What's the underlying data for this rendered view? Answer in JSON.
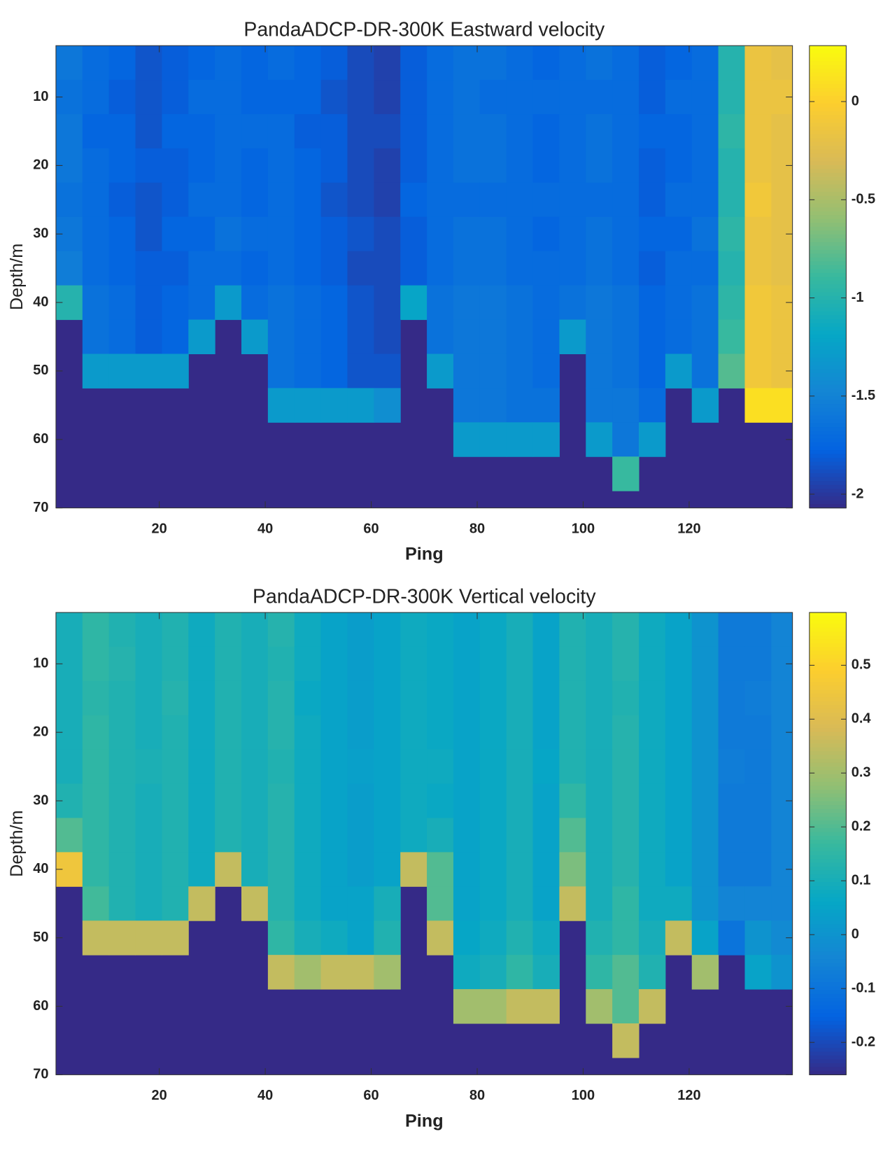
{
  "chart_data": [
    {
      "type": "heatmap",
      "title": "PandaADCP-DR-300K Eastward velocity",
      "x_label": "Ping",
      "y_label": "Depth/m",
      "x": [
        3,
        8,
        13,
        18,
        23,
        28,
        33,
        38,
        43,
        48,
        53,
        58,
        63,
        68,
        73,
        78,
        83,
        88,
        93,
        98,
        103,
        108,
        113,
        118,
        123,
        128,
        133,
        138
      ],
      "y": [
        5,
        10,
        15,
        20,
        25,
        30,
        35,
        40,
        45,
        50,
        55,
        60,
        65,
        70
      ],
      "xlim": [
        0.5,
        139.5
      ],
      "xticks": [
        20,
        40,
        60,
        80,
        100,
        120
      ],
      "ylim": [
        2.5,
        70
      ],
      "yticks": [
        10,
        20,
        30,
        40,
        50,
        60,
        70
      ],
      "y_reversed": true,
      "clim": [
        -2.07,
        0.285
      ],
      "cticks": [
        -2,
        -1.5,
        -1,
        -0.5,
        0
      ],
      "colormap": [
        "#352a87",
        "#0363e1",
        "#1485d4",
        "#06a7c6",
        "#38b99e",
        "#92bf73",
        "#d9ba56",
        "#fcce2e",
        "#f9fb0e"
      ],
      "no_data_color": "#352a87",
      "values": [
        [
          -1.6,
          -1.7,
          -1.75,
          -1.85,
          -1.8,
          -1.75,
          -1.7,
          -1.75,
          -1.7,
          -1.75,
          -1.8,
          -1.9,
          -1.95,
          -1.8,
          -1.7,
          -1.65,
          -1.65,
          -1.7,
          -1.75,
          -1.7,
          -1.65,
          -1.7,
          -1.8,
          -1.75,
          -1.7,
          -1.0,
          -0.15,
          -0.2
        ],
        [
          -1.65,
          -1.7,
          -1.8,
          -1.85,
          -1.8,
          -1.7,
          -1.7,
          -1.75,
          -1.75,
          -1.75,
          -1.85,
          -1.9,
          -1.95,
          -1.8,
          -1.7,
          -1.65,
          -1.7,
          -1.7,
          -1.7,
          -1.7,
          -1.7,
          -1.7,
          -1.8,
          -1.7,
          -1.7,
          -1.0,
          -0.15,
          -0.15
        ],
        [
          -1.6,
          -1.75,
          -1.75,
          -1.85,
          -1.75,
          -1.75,
          -1.7,
          -1.7,
          -1.7,
          -1.8,
          -1.8,
          -1.9,
          -1.9,
          -1.8,
          -1.7,
          -1.65,
          -1.65,
          -1.7,
          -1.75,
          -1.7,
          -1.65,
          -1.7,
          -1.75,
          -1.75,
          -1.7,
          -0.95,
          -0.15,
          -0.2
        ],
        [
          -1.6,
          -1.7,
          -1.75,
          -1.8,
          -1.8,
          -1.75,
          -1.7,
          -1.75,
          -1.7,
          -1.75,
          -1.8,
          -1.9,
          -1.95,
          -1.8,
          -1.7,
          -1.65,
          -1.65,
          -1.7,
          -1.75,
          -1.7,
          -1.65,
          -1.7,
          -1.8,
          -1.75,
          -1.7,
          -1.0,
          -0.15,
          -0.2
        ],
        [
          -1.65,
          -1.7,
          -1.8,
          -1.85,
          -1.8,
          -1.7,
          -1.7,
          -1.75,
          -1.7,
          -1.75,
          -1.85,
          -1.9,
          -1.95,
          -1.75,
          -1.7,
          -1.7,
          -1.7,
          -1.7,
          -1.7,
          -1.7,
          -1.7,
          -1.7,
          -1.8,
          -1.7,
          -1.7,
          -1.0,
          -0.1,
          -0.2
        ],
        [
          -1.6,
          -1.7,
          -1.75,
          -1.85,
          -1.75,
          -1.75,
          -1.65,
          -1.7,
          -1.7,
          -1.75,
          -1.8,
          -1.85,
          -1.9,
          -1.8,
          -1.7,
          -1.65,
          -1.65,
          -1.7,
          -1.75,
          -1.7,
          -1.65,
          -1.7,
          -1.75,
          -1.75,
          -1.65,
          -0.95,
          -0.15,
          -0.2
        ],
        [
          -1.55,
          -1.7,
          -1.75,
          -1.8,
          -1.8,
          -1.7,
          -1.7,
          -1.75,
          -1.7,
          -1.75,
          -1.8,
          -1.9,
          -1.9,
          -1.8,
          -1.7,
          -1.65,
          -1.65,
          -1.7,
          -1.7,
          -1.7,
          -1.65,
          -1.7,
          -1.8,
          -1.7,
          -1.7,
          -1.0,
          -0.15,
          -0.2
        ],
        [
          -1.0,
          -1.65,
          -1.7,
          -1.8,
          -1.75,
          -1.7,
          -1.3,
          -1.7,
          -1.65,
          -1.7,
          -1.75,
          -1.85,
          -1.9,
          -1.2,
          -1.65,
          -1.6,
          -1.6,
          -1.65,
          -1.7,
          -1.65,
          -1.6,
          -1.65,
          -1.75,
          -1.7,
          -1.65,
          -0.95,
          -0.1,
          -0.15
        ],
        [
          null,
          -1.65,
          -1.7,
          -1.8,
          -1.75,
          -1.3,
          null,
          -1.3,
          -1.65,
          -1.7,
          -1.75,
          -1.85,
          -1.9,
          null,
          -1.65,
          -1.6,
          -1.6,
          -1.65,
          -1.7,
          -1.3,
          -1.6,
          -1.65,
          -1.75,
          -1.7,
          -1.65,
          -0.9,
          -0.1,
          -0.15
        ],
        [
          null,
          -1.3,
          -1.3,
          -1.3,
          -1.3,
          null,
          null,
          null,
          -1.65,
          -1.7,
          -1.75,
          -1.85,
          -1.85,
          null,
          -1.3,
          -1.6,
          -1.6,
          -1.65,
          -1.7,
          null,
          -1.6,
          -1.65,
          -1.75,
          -1.3,
          -1.65,
          -0.8,
          -0.1,
          -0.15
        ],
        [
          null,
          null,
          null,
          null,
          null,
          null,
          null,
          null,
          -1.3,
          -1.3,
          -1.3,
          -1.3,
          -1.4,
          null,
          null,
          -1.6,
          -1.6,
          -1.65,
          -1.65,
          null,
          -1.6,
          -1.6,
          -1.7,
          null,
          -1.3,
          null,
          0.1,
          0.1
        ],
        [
          null,
          null,
          null,
          null,
          null,
          null,
          null,
          null,
          null,
          null,
          null,
          null,
          null,
          null,
          null,
          -1.3,
          -1.3,
          -1.3,
          -1.3,
          null,
          -1.3,
          -1.6,
          -1.3,
          null,
          null,
          null,
          null,
          null
        ],
        [
          null,
          null,
          null,
          null,
          null,
          null,
          null,
          null,
          null,
          null,
          null,
          null,
          null,
          null,
          null,
          null,
          null,
          null,
          null,
          null,
          null,
          -0.9,
          null,
          null,
          null,
          null,
          null,
          null
        ],
        [
          null,
          null,
          null,
          null,
          null,
          null,
          null,
          null,
          null,
          null,
          null,
          null,
          null,
          null,
          null,
          null,
          null,
          null,
          null,
          null,
          null,
          null,
          null,
          null,
          null,
          null,
          null,
          null
        ]
      ]
    },
    {
      "type": "heatmap",
      "title": "PandaADCP-DR-300K Vertical velocity",
      "x_label": "Ping",
      "y_label": "Depth/m",
      "x": [
        3,
        8,
        13,
        18,
        23,
        28,
        33,
        38,
        43,
        48,
        53,
        58,
        63,
        68,
        73,
        78,
        83,
        88,
        93,
        98,
        103,
        108,
        113,
        118,
        123,
        128,
        133,
        138
      ],
      "y": [
        5,
        10,
        15,
        20,
        25,
        30,
        35,
        40,
        45,
        50,
        55,
        60,
        65,
        70
      ],
      "xlim": [
        0.5,
        139.5
      ],
      "xticks": [
        20,
        40,
        60,
        80,
        100,
        120
      ],
      "ylim": [
        2.5,
        70
      ],
      "yticks": [
        10,
        20,
        30,
        40,
        50,
        60,
        70
      ],
      "y_reversed": true,
      "clim": [
        -0.26,
        0.598
      ],
      "cticks": [
        -0.2,
        -0.1,
        0,
        0.1,
        0.2,
        0.3,
        0.4,
        0.5
      ],
      "colormap": [
        "#352a87",
        "#0363e1",
        "#1485d4",
        "#06a7c6",
        "#38b99e",
        "#92bf73",
        "#d9ba56",
        "#fcce2e",
        "#f9fb0e"
      ],
      "no_data_color": "#352a87",
      "values": [
        [
          0.1,
          0.15,
          0.12,
          0.1,
          0.12,
          0.08,
          0.12,
          0.1,
          0.13,
          0.08,
          0.05,
          0.03,
          0.05,
          0.08,
          0.07,
          0.05,
          0.07,
          0.1,
          0.05,
          0.12,
          0.1,
          0.13,
          0.08,
          0.05,
          0.0,
          -0.08,
          -0.08,
          -0.05
        ],
        [
          0.1,
          0.15,
          0.13,
          0.1,
          0.12,
          0.08,
          0.12,
          0.1,
          0.12,
          0.08,
          0.05,
          0.03,
          0.05,
          0.08,
          0.07,
          0.05,
          0.07,
          0.1,
          0.05,
          0.12,
          0.1,
          0.13,
          0.08,
          0.05,
          0.0,
          -0.08,
          -0.08,
          -0.05
        ],
        [
          0.1,
          0.14,
          0.12,
          0.1,
          0.13,
          0.08,
          0.12,
          0.1,
          0.13,
          0.07,
          0.05,
          0.03,
          0.05,
          0.08,
          0.07,
          0.05,
          0.07,
          0.1,
          0.05,
          0.12,
          0.1,
          0.12,
          0.08,
          0.05,
          0.0,
          -0.08,
          -0.07,
          -0.05
        ],
        [
          0.1,
          0.15,
          0.12,
          0.1,
          0.12,
          0.08,
          0.12,
          0.1,
          0.13,
          0.08,
          0.05,
          0.03,
          0.05,
          0.08,
          0.07,
          0.05,
          0.07,
          0.1,
          0.05,
          0.12,
          0.1,
          0.13,
          0.08,
          0.05,
          0.0,
          -0.08,
          -0.08,
          -0.05
        ],
        [
          0.1,
          0.15,
          0.12,
          0.11,
          0.12,
          0.08,
          0.12,
          0.1,
          0.12,
          0.08,
          0.05,
          0.04,
          0.05,
          0.08,
          0.08,
          0.05,
          0.07,
          0.1,
          0.06,
          0.12,
          0.1,
          0.13,
          0.08,
          0.05,
          0.0,
          -0.07,
          -0.08,
          -0.05
        ],
        [
          0.12,
          0.15,
          0.12,
          0.1,
          0.12,
          0.08,
          0.12,
          0.1,
          0.13,
          0.08,
          0.05,
          0.03,
          0.05,
          0.08,
          0.07,
          0.05,
          0.07,
          0.1,
          0.05,
          0.15,
          0.1,
          0.13,
          0.08,
          0.05,
          0.0,
          -0.08,
          -0.08,
          -0.05
        ],
        [
          0.2,
          0.15,
          0.12,
          0.1,
          0.12,
          0.08,
          0.12,
          0.1,
          0.13,
          0.08,
          0.05,
          0.03,
          0.05,
          0.08,
          0.1,
          0.05,
          0.07,
          0.1,
          0.05,
          0.2,
          0.1,
          0.13,
          0.08,
          0.05,
          0.0,
          -0.08,
          -0.08,
          -0.05
        ],
        [
          0.45,
          0.15,
          0.12,
          0.1,
          0.12,
          0.08,
          0.35,
          0.1,
          0.13,
          0.08,
          0.05,
          0.03,
          0.05,
          0.35,
          0.2,
          0.05,
          0.07,
          0.1,
          0.05,
          0.25,
          0.1,
          0.13,
          0.08,
          0.05,
          0.0,
          -0.08,
          -0.08,
          -0.05
        ],
        [
          null,
          0.18,
          0.12,
          0.1,
          0.12,
          0.35,
          null,
          0.35,
          0.13,
          0.08,
          0.05,
          0.05,
          0.1,
          null,
          0.2,
          0.05,
          0.07,
          0.1,
          0.05,
          0.35,
          0.1,
          0.15,
          0.08,
          0.08,
          0.0,
          -0.05,
          -0.05,
          -0.05
        ],
        [
          null,
          0.35,
          0.35,
          0.35,
          0.35,
          null,
          null,
          null,
          0.15,
          0.1,
          0.08,
          0.05,
          0.12,
          null,
          0.35,
          0.06,
          0.08,
          0.12,
          0.08,
          null,
          0.12,
          0.15,
          0.1,
          0.35,
          0.05,
          -0.1,
          0.0,
          -0.03
        ],
        [
          null,
          null,
          null,
          null,
          null,
          null,
          null,
          null,
          0.35,
          0.3,
          0.35,
          0.35,
          0.3,
          null,
          null,
          0.08,
          0.1,
          0.15,
          0.1,
          null,
          0.15,
          0.2,
          0.12,
          null,
          0.3,
          null,
          0.05,
          0.0
        ],
        [
          null,
          null,
          null,
          null,
          null,
          null,
          null,
          null,
          null,
          null,
          null,
          null,
          null,
          null,
          null,
          0.3,
          0.3,
          0.35,
          0.35,
          null,
          0.3,
          0.2,
          0.35,
          null,
          null,
          null,
          null,
          null
        ],
        [
          null,
          null,
          null,
          null,
          null,
          null,
          null,
          null,
          null,
          null,
          null,
          null,
          null,
          null,
          null,
          null,
          null,
          null,
          null,
          null,
          null,
          0.35,
          null,
          null,
          null,
          null,
          null,
          null
        ],
        [
          null,
          null,
          null,
          null,
          null,
          null,
          null,
          null,
          null,
          null,
          null,
          null,
          null,
          null,
          null,
          null,
          null,
          null,
          null,
          null,
          null,
          null,
          null,
          null,
          null,
          null,
          null,
          null
        ]
      ]
    }
  ]
}
